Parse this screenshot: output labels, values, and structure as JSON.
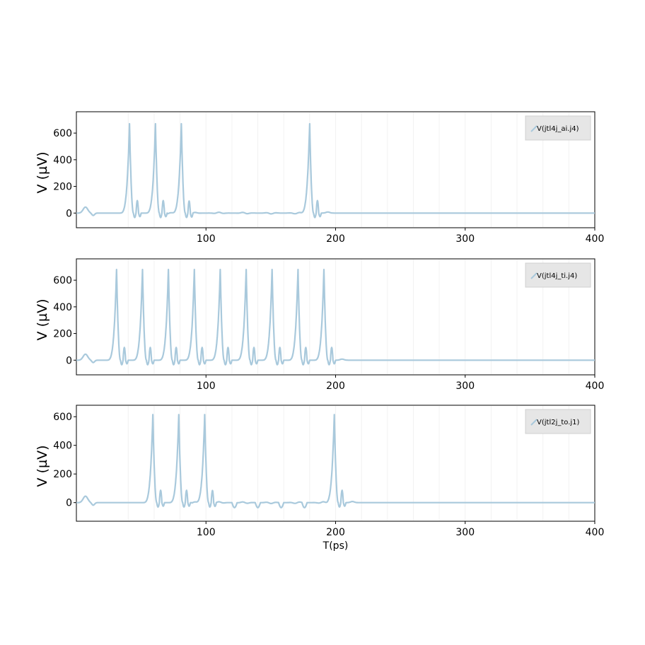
{
  "chart_data": [
    {
      "type": "line",
      "ylabel": "V (µV)",
      "xlabel": "",
      "xlim": [
        0,
        400
      ],
      "ylim": [
        -110,
        760
      ],
      "xticks": [
        100,
        200,
        300,
        400
      ],
      "yticks": [
        0,
        200,
        400,
        600
      ],
      "legend_placement": "top-right",
      "grid": false,
      "series": [
        {
          "name": "V(jtl4j_ai.j4)",
          "color": "#a9c9dc",
          "spikes_x": [
            41,
            61,
            81,
            180
          ],
          "spike_height": 670
        }
      ]
    },
    {
      "type": "line",
      "ylabel": "V (µV)",
      "xlabel": "",
      "xlim": [
        0,
        400
      ],
      "ylim": [
        -110,
        760
      ],
      "xticks": [
        100,
        200,
        300,
        400
      ],
      "yticks": [
        0,
        200,
        400,
        600
      ],
      "legend_placement": "top-right",
      "grid": false,
      "series": [
        {
          "name": "V(jtl4j_ti.j4)",
          "color": "#a9c9dc",
          "spikes_x": [
            31,
            51,
            71,
            91,
            111,
            131,
            151,
            171,
            191
          ],
          "spike_height": 680
        }
      ]
    },
    {
      "type": "line",
      "ylabel": "V (µV)",
      "xlabel": "T(ps)",
      "xlim": [
        0,
        400
      ],
      "ylim": [
        -130,
        680
      ],
      "xticks": [
        100,
        200,
        300,
        400
      ],
      "yticks": [
        0,
        200,
        400,
        600
      ],
      "legend_placement": "top-right",
      "grid": false,
      "series": [
        {
          "name": "V(jtl2j_to.j1)",
          "color": "#a9c9dc",
          "spikes_x": [
            59,
            79,
            99,
            199
          ],
          "spike_height": 615
        }
      ]
    }
  ]
}
